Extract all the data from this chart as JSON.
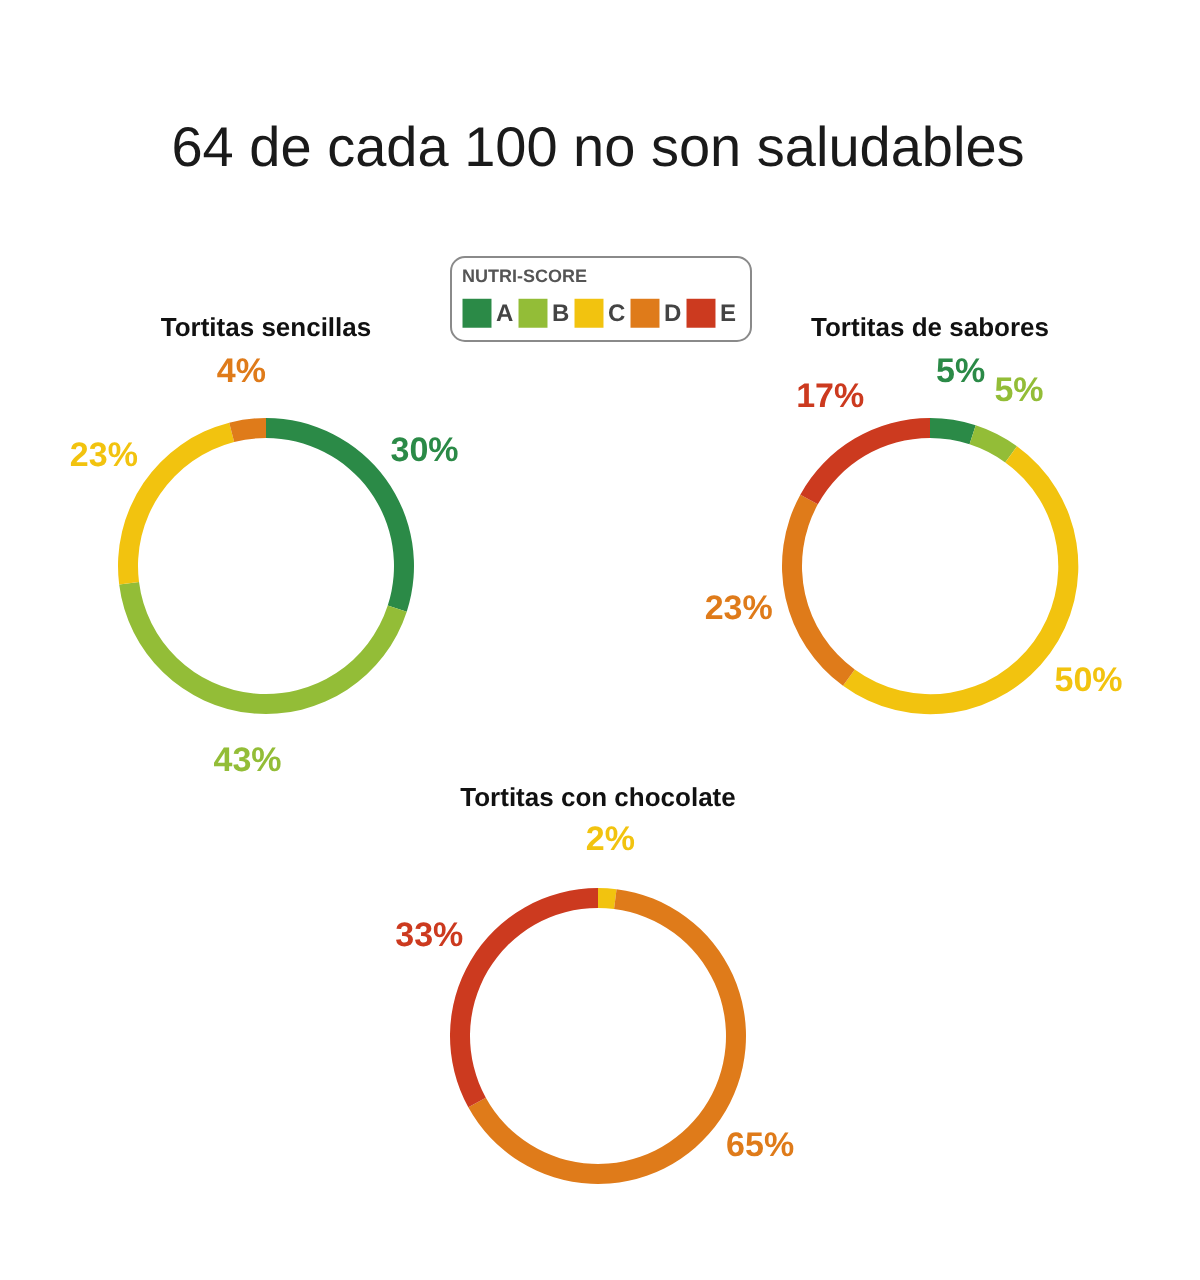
{
  "chart_data": [
    {
      "type": "other",
      "title": "64 de cada 100 no son saludables"
    },
    {
      "type": "donut",
      "title": "Tortitas sencillas",
      "categories": [
        null,
        null,
        null,
        null
      ],
      "values": [
        30,
        43,
        23,
        4
      ],
      "colors": [
        "#2b8a47",
        "#93bd37",
        "#f2c30f",
        "#df7b1a"
      ],
      "value_labels": [
        "30%",
        "43%",
        "23%",
        "4%"
      ]
    },
    {
      "type": "donut",
      "title": "Tortitas de sabores",
      "categories": [
        "A",
        "B",
        "C",
        "D",
        "E"
      ],
      "values": [
        5,
        5,
        50,
        23,
        17
      ],
      "colors": [
        "#2b8a47",
        "#93bd37",
        "#f2c30f",
        "#df7b1a",
        "#cc3a1f"
      ],
      "value_labels": [
        "5%",
        "5%",
        "50%",
        "23%",
        "17%"
      ],
      "legend": "top left",
      "legend_title": "NUTRI-SCORE"
    },
    {
      "type": "donut",
      "title": "Tortitas con chocolate",
      "categories": [
        null,
        null,
        null
      ],
      "values": [
        2,
        65,
        33
      ],
      "colors": [
        "#f2c30f",
        "#df7b1a",
        "#cc3a1f"
      ],
      "value_labels": [
        "2%",
        "65%",
        "33%"
      ]
    }
  ]
}
